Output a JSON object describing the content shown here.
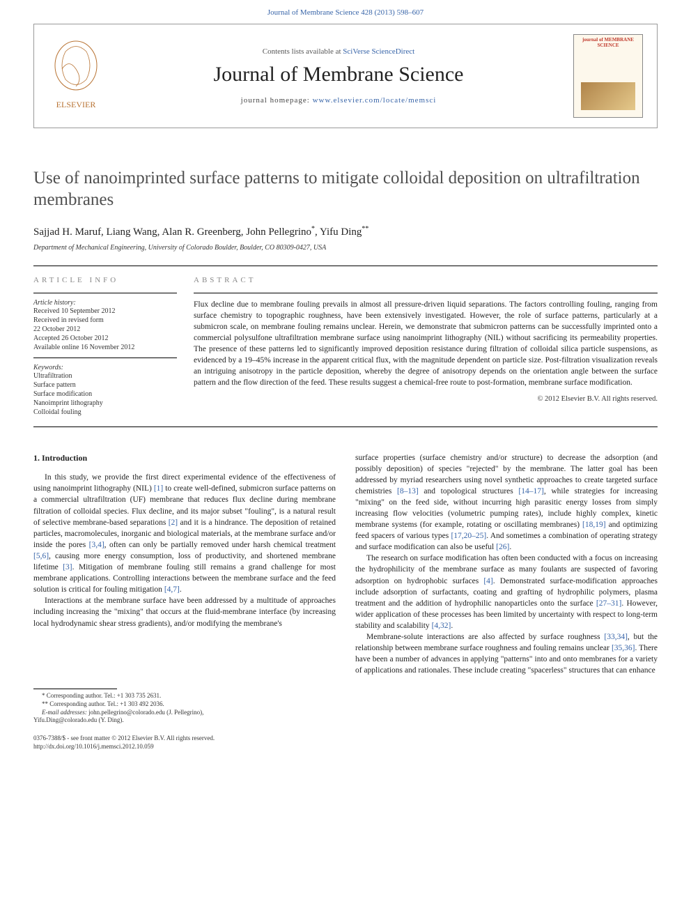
{
  "top_journal_link": "Journal of Membrane Science 428 (2013) 598–607",
  "header": {
    "contents_prefix": "Contents lists available at ",
    "contents_link": "SciVerse ScienceDirect",
    "journal_title": "Journal of Membrane Science",
    "homepage_prefix": "journal homepage: ",
    "homepage_link": "www.elsevier.com/locate/memsci",
    "cover_title": "journal of MEMBRANE SCIENCE"
  },
  "article": {
    "title": "Use of nanoimprinted surface patterns to mitigate colloidal deposition on ultrafiltration membranes",
    "authors": "Sajjad H. Maruf, Liang Wang, Alan R. Greenberg, John Pellegrino",
    "author_ast1": "*",
    "author_last": ", Yifu Ding",
    "author_ast2": "**",
    "affiliation": "Department of Mechanical Engineering, University of Colorado Boulder, Boulder, CO 80309-0427, USA"
  },
  "info": {
    "header": "article info",
    "history_label": "Article history:",
    "history": [
      "Received 10 September 2012",
      "Received in revised form",
      "22 October 2012",
      "Accepted 26 October 2012",
      "Available online 16 November 2012"
    ],
    "keywords_label": "Keywords:",
    "keywords": [
      "Ultrafiltration",
      "Surface pattern",
      "Surface modification",
      "Nanoimprint lithography",
      "Colloidal fouling"
    ]
  },
  "abstract": {
    "header": "abstract",
    "text": "Flux decline due to membrane fouling prevails in almost all pressure-driven liquid separations. The factors controlling fouling, ranging from surface chemistry to topographic roughness, have been extensively investigated. However, the role of surface patterns, particularly at a submicron scale, on membrane fouling remains unclear. Herein, we demonstrate that submicron patterns can be successfully imprinted onto a commercial polysulfone ultrafiltration membrane surface using nanoimprint lithography (NIL) without sacrificing its permeability properties. The presence of these patterns led to significantly improved deposition resistance during filtration of colloidal silica particle suspensions, as evidenced by a 19–45% increase in the apparent critical flux, with the magnitude dependent on particle size. Post-filtration visualization reveals an intriguing anisotropy in the particle deposition, whereby the degree of anisotropy depends on the orientation angle between the surface pattern and the flow direction of the feed. These results suggest a chemical-free route to post-formation, membrane surface modification.",
    "copyright": "© 2012 Elsevier B.V. All rights reserved."
  },
  "body": {
    "section_number": "1.",
    "section_title": "Introduction",
    "col1_p1": "In this study, we provide the first direct experimental evidence of the effectiveness of using nanoimprint lithography (NIL) [1] to create well-defined, submicron surface patterns on a commercial ultrafiltration (UF) membrane that reduces flux decline during membrane filtration of colloidal species. Flux decline, and its major subset \"fouling\", is a natural result of selective membrane-based separations [2] and it is a hindrance. The deposition of retained particles, macromolecules, inorganic and biological materials, at the membrane surface and/or inside the pores [3,4], often can only be partially removed under harsh chemical treatment [5,6], causing more energy consumption, loss of productivity, and shortened membrane lifetime [3]. Mitigation of membrane fouling still remains a grand challenge for most membrane applications. Controlling interactions between the membrane surface and the feed solution is critical for fouling mitigation [4,7].",
    "col1_p2": "Interactions at the membrane surface have been addressed by a multitude of approaches including increasing the \"mixing\" that occurs at the fluid-membrane interface (by increasing local hydrodynamic shear stress gradients), and/or modifying the membrane's",
    "col2_p1": "surface properties (surface chemistry and/or structure) to decrease the adsorption (and possibly deposition) of species \"rejected\" by the membrane. The latter goal has been addressed by myriad researchers using novel synthetic approaches to create targeted surface chemistries [8–13] and topological structures [14–17], while strategies for increasing \"mixing\" on the feed side, without incurring high parasitic energy losses from simply increasing flow velocities (volumetric pumping rates), include highly complex, kinetic membrane systems (for example, rotating or oscillating membranes) [18,19] and optimizing feed spacers of various types [17,20–25]. And sometimes a combination of operating strategy and surface modification can also be useful [26].",
    "col2_p2": "The research on surface modification has often been conducted with a focus on increasing the hydrophilicity of the membrane surface as many foulants are suspected of favoring adsorption on hydrophobic surfaces [4]. Demonstrated surface-modification approaches include adsorption of surfactants, coating and grafting of hydrophilic polymers, plasma treatment and the addition of hydrophilic nanoparticles onto the surface [27–31]. However, wider application of these processes has been limited by uncertainty with respect to long-term stability and scalability [4,32].",
    "col2_p3": "Membrane-solute interactions are also affected by surface roughness [33,34], but the relationship between membrane surface roughness and fouling remains unclear [35,36]. There have been a number of advances in applying \"patterns\" into and onto membranes for a variety of applications and rationales. These include creating \"spacerless\" structures that can enhance"
  },
  "footnotes": {
    "corr1": "* Corresponding author. Tel.: +1 303 735 2631.",
    "corr2": "** Corresponding author. Tel.: +1 303 492 2036.",
    "email_label": "E-mail addresses: ",
    "email1": "john.pellegrino@colorado.edu (J. Pellegrino),",
    "email2": "Yifu.Ding@colorado.edu (Y. Ding)."
  },
  "bottom": {
    "issn": "0376-7388/$ - see front matter © 2012 Elsevier B.V. All rights reserved.",
    "doi": "http://dx.doi.org/10.1016/j.memsci.2012.10.059"
  }
}
